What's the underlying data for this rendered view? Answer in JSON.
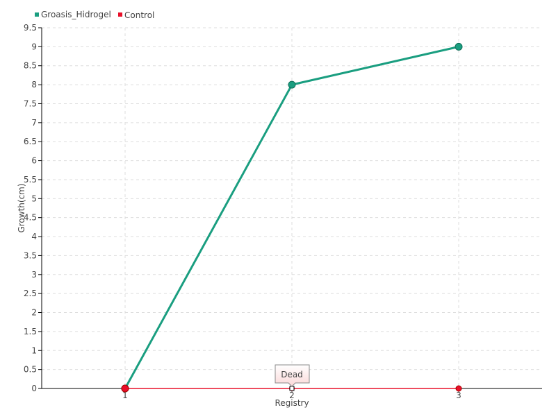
{
  "chart_data": {
    "type": "line",
    "title": "",
    "xlabel": "Registry",
    "ylabel": "Growth(cm)",
    "x": [
      1,
      2,
      3
    ],
    "xticks": [
      "1",
      "2",
      "3"
    ],
    "ylim": [
      0,
      9.5
    ],
    "yticks": [
      "0",
      "0.5",
      "1",
      "1.5",
      "2",
      "2.5",
      "3",
      "3.5",
      "4",
      "4.5",
      "5",
      "5.5",
      "6",
      "6.5",
      "7",
      "7.5",
      "8",
      "8.5",
      "9",
      "9.5"
    ],
    "grid": true,
    "legend_position": "top-left",
    "series": [
      {
        "name": "Groasis_Hidrogel",
        "color": "#1a9e80",
        "values": [
          0,
          8,
          9
        ]
      },
      {
        "name": "Control",
        "color": "#e8102a",
        "values": [
          0,
          0,
          0
        ]
      }
    ],
    "annotations": [
      {
        "text": "Dead",
        "series": "Control",
        "x": 2,
        "y": 0
      }
    ]
  }
}
